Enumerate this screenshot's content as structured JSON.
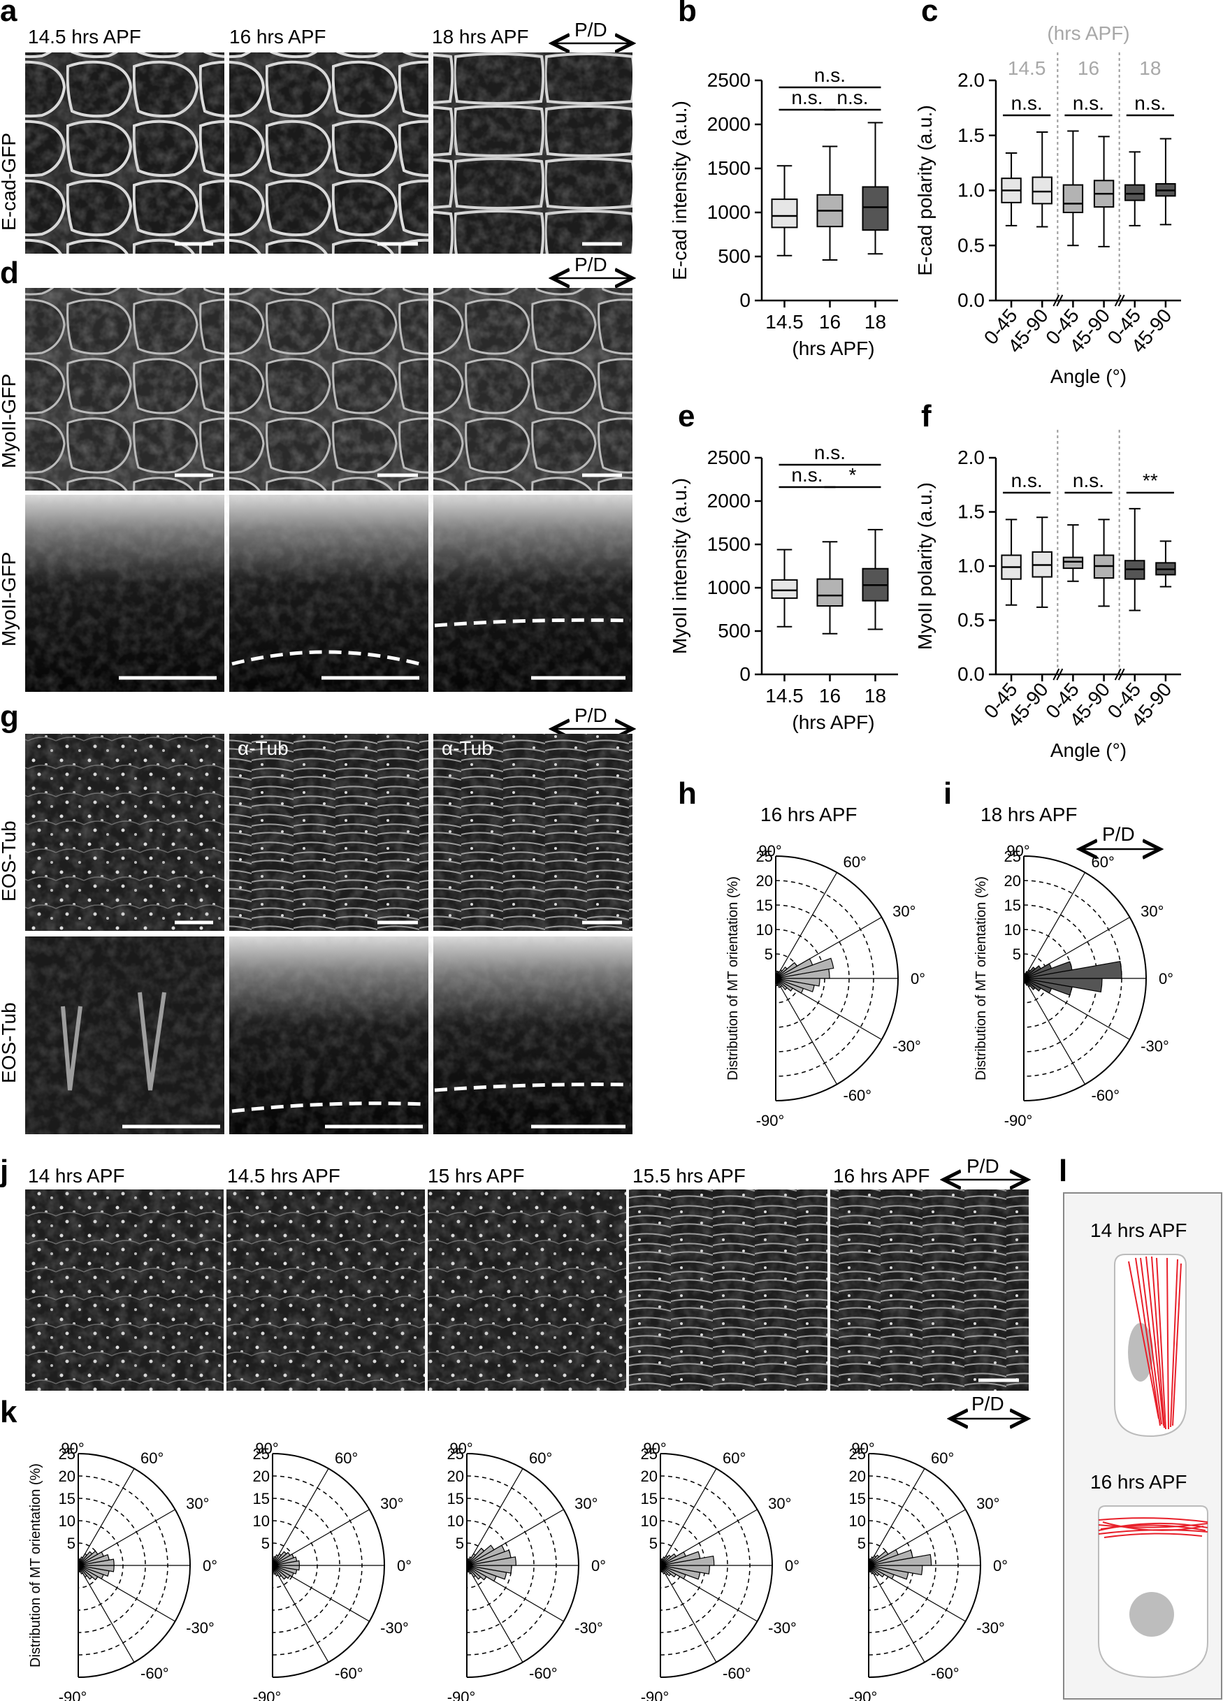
{
  "panels": {
    "a": "a",
    "b": "b",
    "c": "c",
    "d": "d",
    "e": "e",
    "f": "f",
    "g": "g",
    "h": "h",
    "i": "i",
    "j": "j",
    "k": "k",
    "l": "l"
  },
  "pd_label": "P/D",
  "a": {
    "col_labels": [
      "14.5 hrs APF",
      "16 hrs APF",
      "18 hrs APF"
    ],
    "row_label": "E-cad-GFP"
  },
  "d": {
    "row_label_top": "MyoII-GFP",
    "row_label_bottom": "MyoII-GFP"
  },
  "g": {
    "row_label_top": "EOS-Tub",
    "row_label_bottom": "EOS-Tub",
    "overlay_labels": [
      "α-Tub",
      "α-Tub"
    ]
  },
  "j": {
    "col_labels": [
      "14 hrs APF",
      "14.5 hrs APF",
      "15 hrs APF",
      "15.5 hrs APF",
      "16 hrs APF"
    ]
  },
  "l": {
    "labels": [
      "14 hrs APF",
      "16 hrs APF"
    ]
  },
  "colors": {
    "light": "#e6e6e6",
    "mid": "#b3b3b3",
    "dark": "#555555",
    "mt_red": "#e8202a",
    "dashed_gray": "#9a9a9a"
  },
  "chart_data": [
    {
      "id": "b",
      "type": "box",
      "ylabel": "E-cad intensity (a.u.)",
      "xlabel": "(hrs APF)",
      "categories": [
        "14.5",
        "16",
        "18"
      ],
      "ylim": [
        0,
        2500
      ],
      "yticks": [
        "0",
        "500",
        "1000",
        "1500",
        "2000",
        "2500"
      ],
      "boxes": [
        {
          "min": 510,
          "q1": 830,
          "median": 960,
          "q3": 1150,
          "max": 1530,
          "fill": "light"
        },
        {
          "min": 460,
          "q1": 840,
          "median": 1020,
          "q3": 1200,
          "max": 1750,
          "fill": "mid"
        },
        {
          "min": 530,
          "q1": 800,
          "median": 1060,
          "q3": 1290,
          "max": 2020,
          "fill": "dark"
        }
      ],
      "annotations": [
        {
          "text": "n.s.",
          "from": 0,
          "to": 1
        },
        {
          "text": "n.s.",
          "from": 1,
          "to": 2
        },
        {
          "text": "n.s.",
          "from": 0,
          "to": 2
        }
      ]
    },
    {
      "id": "c",
      "type": "box",
      "ylabel": "E-cad polarity (a.u.)",
      "xlabel": "Angle (°)",
      "top_label": "(hrs APF)",
      "group_labels": [
        "14.5",
        "16",
        "18"
      ],
      "categories": [
        "0-45",
        "45-90",
        "0-45",
        "45-90",
        "0-45",
        "45-90"
      ],
      "ylim": [
        0,
        2.0
      ],
      "yticks": [
        "0.0",
        "0.5",
        "1.0",
        "1.5",
        "2.0"
      ],
      "boxes": [
        {
          "min": 0.68,
          "q1": 0.89,
          "median": 1.0,
          "q3": 1.11,
          "max": 1.34,
          "fill": "light"
        },
        {
          "min": 0.67,
          "q1": 0.88,
          "median": 0.99,
          "q3": 1.12,
          "max": 1.53,
          "fill": "light"
        },
        {
          "min": 0.5,
          "q1": 0.8,
          "median": 0.88,
          "q3": 1.05,
          "max": 1.54,
          "fill": "mid"
        },
        {
          "min": 0.49,
          "q1": 0.85,
          "median": 0.97,
          "q3": 1.09,
          "max": 1.49,
          "fill": "mid"
        },
        {
          "min": 0.68,
          "q1": 0.91,
          "median": 0.97,
          "q3": 1.05,
          "max": 1.35,
          "fill": "dark"
        },
        {
          "min": 0.69,
          "q1": 0.95,
          "median": 1.0,
          "q3": 1.06,
          "max": 1.47,
          "fill": "dark"
        }
      ],
      "annotations": [
        {
          "text": "n.s.",
          "from": 0,
          "to": 1
        },
        {
          "text": "n.s.",
          "from": 2,
          "to": 3
        },
        {
          "text": "n.s.",
          "from": 4,
          "to": 5
        }
      ]
    },
    {
      "id": "e",
      "type": "box",
      "ylabel": "MyoII intensity (a.u.)",
      "xlabel": "(hrs APF)",
      "categories": [
        "14.5",
        "16",
        "18"
      ],
      "ylim": [
        0,
        2500
      ],
      "yticks": [
        "0",
        "500",
        "1000",
        "1500",
        "2000",
        "2500"
      ],
      "boxes": [
        {
          "min": 550,
          "q1": 880,
          "median": 970,
          "q3": 1090,
          "max": 1440,
          "fill": "light"
        },
        {
          "min": 470,
          "q1": 790,
          "median": 910,
          "q3": 1100,
          "max": 1530,
          "fill": "mid"
        },
        {
          "min": 520,
          "q1": 850,
          "median": 1030,
          "q3": 1220,
          "max": 1670,
          "fill": "dark"
        }
      ],
      "annotations": [
        {
          "text": "n.s.",
          "from": 0,
          "to": 1
        },
        {
          "text": "*",
          "from": 1,
          "to": 2
        },
        {
          "text": "n.s.",
          "from": 0,
          "to": 2
        }
      ]
    },
    {
      "id": "f",
      "type": "box",
      "ylabel": "MyoII polarity (a.u.)",
      "xlabel": "Angle (°)",
      "categories": [
        "0-45",
        "45-90",
        "0-45",
        "45-90",
        "0-45",
        "45-90"
      ],
      "ylim": [
        0,
        2.0
      ],
      "yticks": [
        "0.0",
        "0.5",
        "1.0",
        "1.5",
        "2.0"
      ],
      "boxes": [
        {
          "min": 0.64,
          "q1": 0.88,
          "median": 0.99,
          "q3": 1.1,
          "max": 1.43,
          "fill": "light"
        },
        {
          "min": 0.62,
          "q1": 0.9,
          "median": 1.01,
          "q3": 1.13,
          "max": 1.45,
          "fill": "light"
        },
        {
          "min": 0.86,
          "q1": 0.98,
          "median": 1.04,
          "q3": 1.08,
          "max": 1.38,
          "fill": "mid"
        },
        {
          "min": 0.63,
          "q1": 0.89,
          "median": 1.0,
          "q3": 1.1,
          "max": 1.43,
          "fill": "mid"
        },
        {
          "min": 0.59,
          "q1": 0.88,
          "median": 0.97,
          "q3": 1.05,
          "max": 1.53,
          "fill": "dark"
        },
        {
          "min": 0.81,
          "q1": 0.92,
          "median": 0.97,
          "q3": 1.03,
          "max": 1.23,
          "fill": "dark"
        }
      ],
      "annotations": [
        {
          "text": "n.s.",
          "from": 0,
          "to": 1
        },
        {
          "text": "n.s.",
          "from": 2,
          "to": 3
        },
        {
          "text": "**",
          "from": 4,
          "to": 5
        }
      ]
    },
    {
      "id": "h",
      "type": "polar-histogram",
      "title": "16 hrs APF",
      "ylabel": "Distribution of MT orientation (%)",
      "radial_ticks": [
        "5",
        "10",
        "15",
        "20",
        "25"
      ],
      "rmax": 25,
      "angle_labels": [
        "90°",
        "60°",
        "30°",
        "0°",
        "-30°",
        "-60°",
        "-90°"
      ],
      "bin_centers_deg": [
        -85,
        -75,
        -65,
        -55,
        -45,
        -35,
        -25,
        -15,
        -5,
        5,
        15,
        25,
        35,
        45,
        55,
        65,
        75,
        85
      ],
      "values": [
        1.5,
        1.5,
        2,
        2,
        3,
        4,
        6,
        8,
        9,
        11,
        12,
        8,
        5,
        3,
        2,
        1.5,
        1.5,
        1.5
      ],
      "fill": "mid"
    },
    {
      "id": "i",
      "type": "polar-histogram",
      "title": "18 hrs APF",
      "ylabel": "Distribution of MT orientation (%)",
      "radial_ticks": [
        "5",
        "10",
        "15",
        "20",
        "25"
      ],
      "rmax": 25,
      "angle_labels": [
        "90°",
        "60°",
        "30°",
        "0°",
        "-30°",
        "-60°",
        "-90°"
      ],
      "bin_centers_deg": [
        -85,
        -75,
        -65,
        -55,
        -45,
        -35,
        -25,
        -15,
        -5,
        5,
        15,
        25,
        35,
        45,
        55,
        65,
        75,
        85
      ],
      "values": [
        1,
        1,
        1.5,
        2,
        3,
        4,
        6,
        10,
        16,
        20,
        10,
        6,
        4,
        3,
        2,
        1.5,
        1,
        1
      ],
      "fill": "dark"
    },
    {
      "id": "k",
      "type": "polar-histogram-row",
      "ylabel": "Distribution of MT orientation (%)",
      "radial_ticks": [
        "5",
        "10",
        "15",
        "20",
        "25"
      ],
      "rmax": 25,
      "angle_labels": [
        "90°",
        "60°",
        "30°",
        "0°",
        "-30°",
        "-60°",
        "-90°"
      ],
      "bin_centers_deg": [
        -85,
        -75,
        -65,
        -55,
        -45,
        -35,
        -25,
        -15,
        -5,
        5,
        15,
        25,
        35,
        45,
        55,
        65,
        75,
        85
      ],
      "series": [
        {
          "values": [
            1,
            1.5,
            2,
            3,
            4,
            5,
            6,
            7,
            8,
            8,
            7,
            6,
            5,
            4,
            3,
            2,
            1.5,
            1
          ]
        },
        {
          "values": [
            1.5,
            2,
            2.5,
            3,
            4,
            4.5,
            5,
            5.5,
            6,
            6,
            5.5,
            5,
            4.5,
            4,
            3,
            2.5,
            2,
            1.5
          ]
        },
        {
          "values": [
            1,
            1.5,
            2,
            3,
            4,
            5,
            7,
            9,
            10,
            11,
            10,
            9,
            7,
            5,
            3,
            2,
            1.5,
            1
          ]
        },
        {
          "values": [
            1,
            1.5,
            2,
            2.5,
            3,
            4,
            6,
            9,
            11,
            12,
            9,
            6,
            4,
            3,
            2.5,
            2,
            1.5,
            1
          ]
        },
        {
          "values": [
            1,
            1.5,
            2,
            2.5,
            3,
            4,
            6,
            9,
            12,
            14,
            10,
            7,
            5,
            3,
            2.5,
            2,
            1.5,
            1
          ]
        }
      ],
      "fill": "mid"
    }
  ]
}
